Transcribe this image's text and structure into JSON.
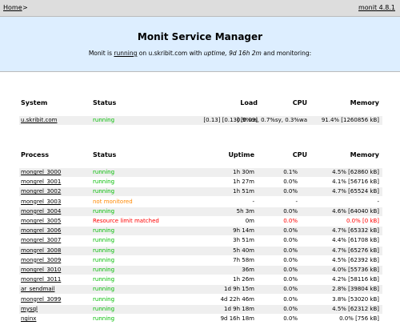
{
  "nav": {
    "home": "Home",
    "separator": ">",
    "version": "monit 4.8.1"
  },
  "header": {
    "title": "Monit Service Manager",
    "intro": [
      "Monit is",
      "running",
      "on u.skribit.com with",
      "uptime, 9d 16h 2m",
      "and monitoring:"
    ]
  },
  "system_table": {
    "headers": [
      "System",
      "Status",
      "Load",
      "CPU",
      "Memory"
    ],
    "rows": [
      {
        "cells": [
          "u.skribit.com",
          "running",
          "[0.13] [0.13] [0.09]",
          "0.9%us, 0.7%sy, 0.3%wa",
          "91.4% [1260856 kB]"
        ],
        "color": "#00bb00"
      }
    ]
  },
  "process_table": {
    "headers": [
      "Process",
      "Status",
      "Uptime",
      "CPU",
      "Memory"
    ],
    "rows": [
      {
        "cells": [
          "mongrel_3000",
          "running",
          "1h 30m",
          "0.1%",
          "4.5% [62860 kB]"
        ],
        "color": "#00bb00"
      },
      {
        "cells": [
          "mongrel_3001",
          "running",
          "1h 27m",
          "0.0%",
          "4.1% [56716 kB]"
        ],
        "color": "#00bb00"
      },
      {
        "cells": [
          "mongrel_3002",
          "running",
          "1h 51m",
          "0.0%",
          "4.7% [65524 kB]"
        ],
        "color": "#00bb00"
      },
      {
        "cells": [
          "mongrel_3003",
          "not monitored",
          "-",
          "-",
          "-"
        ],
        "color": "#ff8800"
      },
      {
        "cells": [
          "mongrel_3004",
          "running",
          "5h 3m",
          "0.0%",
          "4.6% [64040 kB]"
        ],
        "color": "#00bb00"
      },
      {
        "cells": [
          "mongrel_3005",
          "Resource limit matched",
          "0m",
          "0.0%",
          "0.0% [0 kB]"
        ],
        "color": "#ff0000",
        "alert": true
      },
      {
        "cells": [
          "mongrel_3006",
          "running",
          "9h 14m",
          "0.0%",
          "4.7% [65332 kB]"
        ],
        "color": "#00bb00"
      },
      {
        "cells": [
          "mongrel_3007",
          "running",
          "3h 51m",
          "0.0%",
          "4.4% [61708 kB]"
        ],
        "color": "#00bb00"
      },
      {
        "cells": [
          "mongrel_3008",
          "running",
          "5h 40m",
          "0.0%",
          "4.7% [65276 kB]"
        ],
        "color": "#00bb00"
      },
      {
        "cells": [
          "mongrel_3009",
          "running",
          "7h 58m",
          "0.0%",
          "4.5% [62392 kB]"
        ],
        "color": "#00bb00"
      },
      {
        "cells": [
          "mongrel_3010",
          "running",
          "36m",
          "0.0%",
          "4.0% [55736 kB]"
        ],
        "color": "#00bb00"
      },
      {
        "cells": [
          "mongrel_3011",
          "running",
          "1h 26m",
          "0.0%",
          "4.2% [58116 kB]"
        ],
        "color": "#00bb00"
      },
      {
        "cells": [
          "ar_sendmail",
          "running",
          "1d 9h 15m",
          "0.0%",
          "2.8% [39804 kB]"
        ],
        "color": "#00bb00"
      },
      {
        "cells": [
          "mongrel_3099",
          "running",
          "4d 22h 46m",
          "0.0%",
          "3.8% [53020 kB]"
        ],
        "color": "#00bb00"
      },
      {
        "cells": [
          "mysql",
          "running",
          "1d 9h 18m",
          "0.0%",
          "4.5% [62312 kB]"
        ],
        "color": "#00bb00"
      },
      {
        "cells": [
          "nginx",
          "running",
          "9d 16h 18m",
          "0.0%",
          "0.0% [756 kB]"
        ],
        "color": "#00bb00"
      }
    ]
  }
}
